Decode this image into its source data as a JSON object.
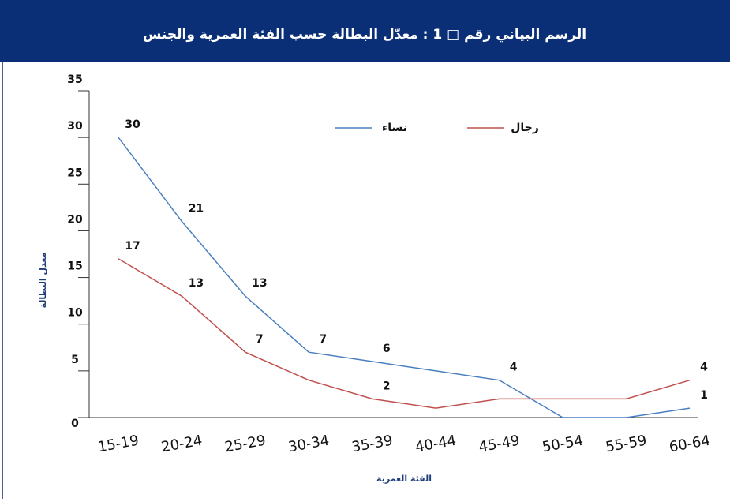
{
  "chart_data": {
    "type": "line",
    "title": "الرسم البياني رقم □ 1 : معدّل البطالة حسب الفئة العمرية والجنس",
    "x_label": "الفئة العمرية",
    "y_label": "معدل البطالة",
    "categories": [
      "15-19",
      "20-24",
      "25-29",
      "30-34",
      "35-39",
      "40-44",
      "45-49",
      "50-54",
      "55-59",
      "60-64"
    ],
    "series": [
      {
        "name": "نساء",
        "color": "#4a7fbf",
        "values": [
          30,
          21,
          13,
          7,
          6,
          5,
          4,
          0,
          0,
          1
        ],
        "value_labels": [
          "30",
          "21",
          "13",
          "7",
          "6",
          null,
          "4",
          null,
          null,
          "1"
        ]
      },
      {
        "name": "رجال",
        "color": "#c0504d",
        "values": [
          17,
          13,
          7,
          4,
          2,
          1,
          2,
          2,
          2,
          4
        ],
        "value_labels": [
          "17",
          "13",
          "7",
          null,
          "2",
          null,
          null,
          null,
          null,
          "4"
        ]
      }
    ],
    "ylim": [
      0,
      35
    ],
    "yticks": [
      0,
      5,
      10,
      15,
      20,
      25,
      30,
      35
    ],
    "grid": false
  }
}
